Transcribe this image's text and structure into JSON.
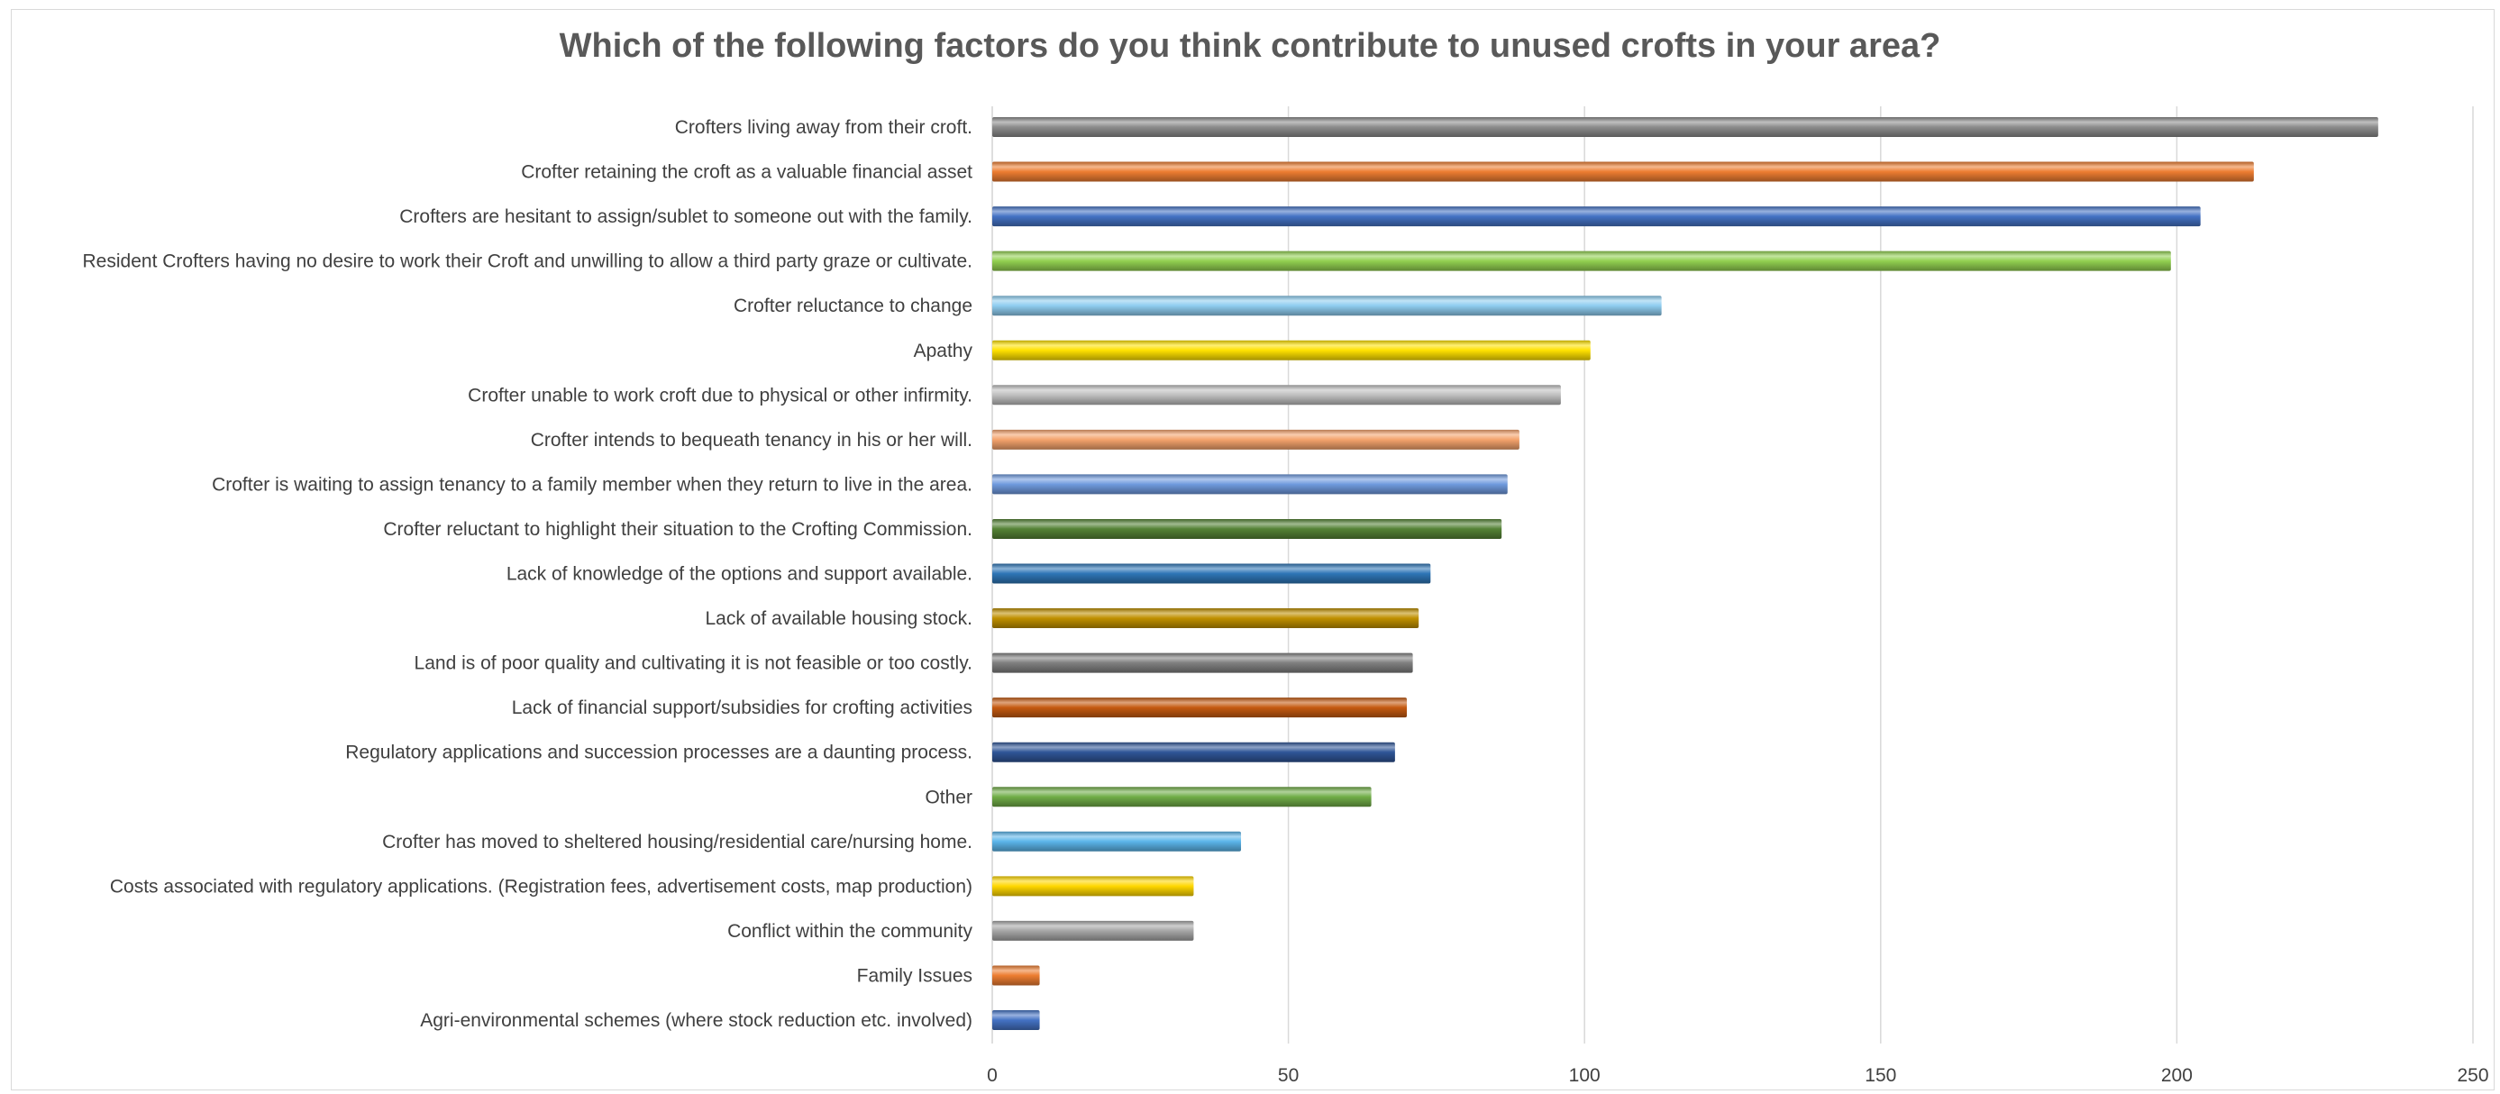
{
  "chart_data": {
    "type": "bar",
    "orientation": "horizontal",
    "title": "Which of the following factors do you think contribute to unused crofts in your area?",
    "xlabel": "",
    "ylabel": "",
    "xlim": [
      0,
      250
    ],
    "x_ticks": [
      0,
      50,
      100,
      150,
      200,
      250
    ],
    "grid": true,
    "legend": "none",
    "categories": [
      "Crofters living away from their croft.",
      "Crofter retaining the croft as a valuable financial asset",
      "Crofters are hesitant to assign/sublet to someone out with the family.",
      "Resident Crofters having no desire to work their Croft and unwilling to allow a third party graze or cultivate.",
      "Crofter reluctance to change",
      "Apathy",
      "Crofter unable to work croft due to physical or other infirmity.",
      "Crofter intends to bequeath tenancy in his or her will.",
      "Crofter is waiting to assign tenancy to a family member when they return to live in the area.",
      "Crofter reluctant to highlight their situation to the Crofting Commission.",
      "Lack of knowledge of the options and support available.",
      "Lack of available housing stock.",
      "Land is of poor quality and cultivating it is not feasible or too costly.",
      "Lack of financial support/subsidies for crofting activities",
      "Regulatory applications and succession processes are a daunting process.",
      "Other",
      "Crofter has moved to sheltered housing/residential care/nursing home.",
      "Costs associated with regulatory applications. (Registration fees, advertisement costs, map production)",
      "Conflict within the community",
      "Family Issues",
      "Agri-environmental schemes (where stock reduction etc. involved)"
    ],
    "values": [
      234,
      213,
      204,
      199,
      113,
      101,
      96,
      89,
      87,
      86,
      74,
      72,
      71,
      70,
      68,
      64,
      42,
      34,
      34,
      8,
      8
    ],
    "colors": [
      "#8c8c8c",
      "#ed7d31",
      "#4472c4",
      "#92d050",
      "#8fcdf0",
      "#ffe100",
      "#bfbfbf",
      "#f4a36c",
      "#6f9ade",
      "#548235",
      "#2e75b6",
      "#c09000",
      "#7f7f7f",
      "#c55a11",
      "#2f5597",
      "#70ad47",
      "#5bb5ea",
      "#ffd700",
      "#a6a6a6",
      "#ed7d31",
      "#4472c4"
    ]
  }
}
